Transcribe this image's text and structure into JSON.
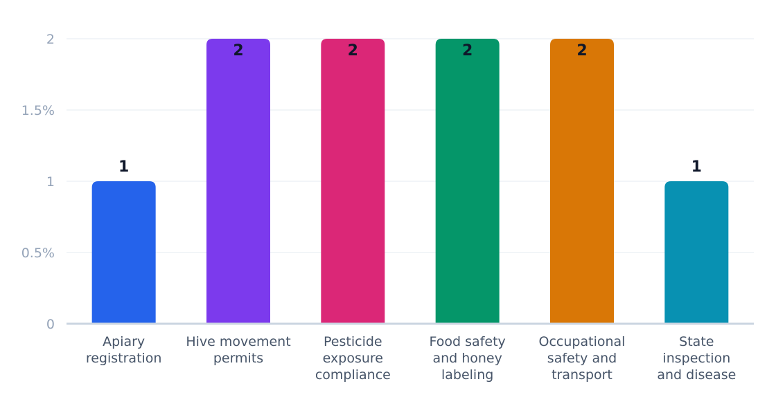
{
  "chart_data": {
    "type": "bar",
    "categories": [
      [
        "Apiary",
        "registration"
      ],
      [
        "Hive movement",
        "permits"
      ],
      [
        "Pesticide",
        "exposure",
        "compliance"
      ],
      [
        "Food safety",
        "and honey",
        "labeling"
      ],
      [
        "Occupational",
        "safety and",
        "transport"
      ],
      [
        "State",
        "inspection",
        "and disease"
      ]
    ],
    "values": [
      1,
      2,
      2,
      2,
      2,
      1
    ],
    "value_labels": [
      "1",
      "2",
      "2",
      "2",
      "2",
      "1"
    ],
    "colors": [
      "#2563eb",
      "#7c3aed",
      "#db2777",
      "#059669",
      "#d97706",
      "#0891b2"
    ],
    "yticks": [
      {
        "value": 0,
        "label": "0"
      },
      {
        "value": 0.5,
        "label": "0.5%"
      },
      {
        "value": 1,
        "label": "1"
      },
      {
        "value": 1.5,
        "label": "1.5%"
      },
      {
        "value": 2,
        "label": "2"
      }
    ],
    "ylim": [
      0,
      2
    ],
    "grid": true,
    "title": "",
    "xlabel": "",
    "ylabel": ""
  }
}
